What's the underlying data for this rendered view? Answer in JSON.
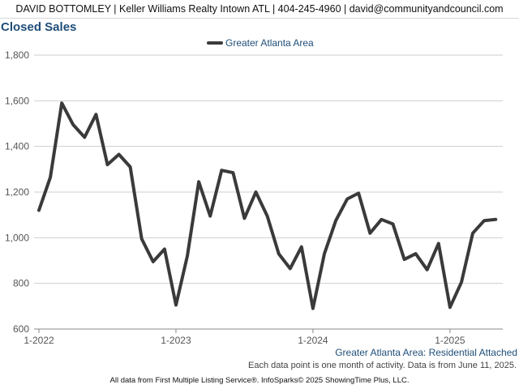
{
  "header": {
    "text": "DAVID BOTTOMLEY | Keller Williams Realty Intown ATL | 404-245-4960 | david@communityandcouncil.com"
  },
  "chart_data": {
    "type": "line",
    "title": "Closed Sales",
    "subtitle": "Greater Atlanta Area: Residential Attached",
    "xlabel": "",
    "ylabel": "",
    "ylim": [
      600,
      1800
    ],
    "y_ticks": [
      "600",
      "800",
      "1,000",
      "1,200",
      "1,400",
      "1,600",
      "1,800"
    ],
    "y_tick_values": [
      600,
      800,
      1000,
      1200,
      1400,
      1600,
      1800
    ],
    "x_ticks": [
      {
        "label": "1-2022",
        "index": 0
      },
      {
        "label": "1-2023",
        "index": 12
      },
      {
        "label": "1-2024",
        "index": 24
      },
      {
        "label": "1-2025",
        "index": 36
      }
    ],
    "grid": true,
    "legend_position": "top-center",
    "series": [
      {
        "name": "Greater Atlanta Area",
        "color": "#3a3a3a",
        "x": [
          "1-2022",
          "2-2022",
          "3-2022",
          "4-2022",
          "5-2022",
          "6-2022",
          "7-2022",
          "8-2022",
          "9-2022",
          "10-2022",
          "11-2022",
          "12-2022",
          "1-2023",
          "2-2023",
          "3-2023",
          "4-2023",
          "5-2023",
          "6-2023",
          "7-2023",
          "8-2023",
          "9-2023",
          "10-2023",
          "11-2023",
          "12-2023",
          "1-2024",
          "2-2024",
          "3-2024",
          "4-2024",
          "5-2024",
          "6-2024",
          "7-2024",
          "8-2024",
          "9-2024",
          "10-2024",
          "11-2024",
          "12-2024",
          "1-2025",
          "2-2025",
          "3-2025",
          "4-2025",
          "5-2025"
        ],
        "values": [
          1120,
          1265,
          1590,
          1495,
          1440,
          1540,
          1320,
          1365,
          1310,
          995,
          895,
          950,
          705,
          920,
          1245,
          1095,
          1295,
          1285,
          1085,
          1200,
          1095,
          930,
          865,
          960,
          690,
          930,
          1075,
          1170,
          1195,
          1020,
          1080,
          1060,
          905,
          930,
          860,
          975,
          695,
          805,
          1020,
          1075,
          1080
        ]
      }
    ]
  },
  "notes": {
    "data_point": "Each data point is one month of activity. Data is from June 11, 2025."
  },
  "footer": {
    "text": "All data from First Multiple Listing Service®. InfoSparks© 2025 ShowingTime Plus, LLC."
  }
}
